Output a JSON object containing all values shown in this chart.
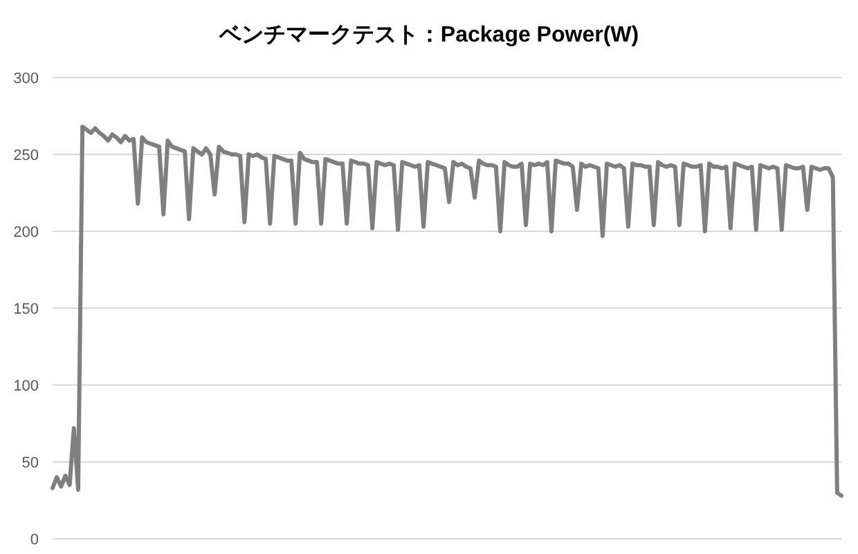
{
  "chart_data": {
    "type": "line",
    "title": "ベンチマークテスト：Package Power(W)",
    "categories": [
      null,
      null,
      null,
      null,
      null,
      null,
      null,
      null,
      null,
      null,
      null,
      null,
      null,
      null,
      null,
      null,
      null,
      null,
      null,
      null,
      null,
      null,
      null,
      null,
      null,
      null,
      null,
      null,
      null,
      null,
      null,
      null,
      null,
      null,
      null,
      null,
      null,
      null,
      null,
      null,
      null,
      null,
      null,
      null,
      null,
      null,
      null,
      null,
      null,
      null,
      null,
      null,
      null,
      null,
      null,
      null,
      null,
      null,
      null,
      null,
      null,
      null,
      null,
      null,
      null,
      null,
      null,
      null,
      null,
      null,
      null,
      null,
      null,
      null,
      null,
      null,
      null,
      null,
      null,
      null,
      null,
      null,
      null,
      null,
      null,
      null,
      null,
      null,
      null,
      null,
      null,
      null,
      null,
      null,
      null,
      null,
      null,
      null,
      null,
      null,
      null,
      null,
      null,
      null,
      null,
      null,
      null,
      null,
      null,
      null,
      null,
      null,
      null,
      null,
      null,
      null,
      null,
      null,
      null,
      null,
      null,
      null,
      null,
      null,
      null,
      null,
      null,
      null,
      null,
      null,
      null,
      null,
      null,
      null,
      null,
      null,
      null,
      null,
      null,
      null,
      null,
      null,
      null,
      null,
      null,
      null,
      null,
      null,
      null,
      null,
      null,
      null,
      null,
      null,
      null,
      null,
      null,
      null,
      null,
      null,
      null,
      null,
      null,
      null,
      null,
      null,
      null,
      null,
      null,
      null,
      null,
      null,
      null,
      null,
      null,
      null,
      null,
      null,
      null,
      null,
      null,
      null,
      null,
      null,
      null,
      null
    ],
    "values": [
      33,
      40,
      34,
      41,
      35,
      72,
      32,
      268,
      266,
      264,
      267,
      264,
      262,
      259,
      263,
      261,
      258,
      262,
      259,
      260,
      218,
      261,
      258,
      257,
      256,
      255,
      211,
      259,
      255,
      254,
      253,
      252,
      208,
      254,
      252,
      250,
      254,
      250,
      224,
      255,
      252,
      251,
      250,
      250,
      249,
      206,
      250,
      249,
      250,
      248,
      247,
      205,
      249,
      248,
      247,
      246,
      246,
      205,
      251,
      247,
      246,
      245,
      245,
      205,
      247,
      246,
      245,
      244,
      244,
      205,
      246,
      245,
      244,
      244,
      243,
      202,
      245,
      244,
      243,
      244,
      243,
      201,
      245,
      244,
      243,
      242,
      243,
      203,
      245,
      244,
      243,
      242,
      241,
      219,
      245,
      243,
      244,
      242,
      241,
      222,
      246,
      244,
      243,
      243,
      242,
      200,
      245,
      243,
      242,
      242,
      244,
      204,
      244,
      243,
      244,
      243,
      245,
      200,
      246,
      245,
      244,
      244,
      242,
      214,
      244,
      242,
      243,
      242,
      241,
      197,
      244,
      243,
      242,
      243,
      241,
      203,
      244,
      243,
      243,
      242,
      242,
      204,
      245,
      243,
      242,
      243,
      242,
      204,
      244,
      243,
      242,
      242,
      243,
      200,
      244,
      242,
      242,
      241,
      242,
      202,
      244,
      243,
      242,
      241,
      242,
      201,
      243,
      242,
      241,
      242,
      241,
      201,
      243,
      242,
      241,
      241,
      242,
      214,
      242,
      241,
      240,
      241,
      241,
      235,
      30,
      28
    ],
    "color": "#7f7f7f",
    "ylim": [
      0,
      300
    ],
    "yticks": [
      0,
      50,
      100,
      150,
      200,
      250,
      300
    ],
    "grid": "y",
    "marker": "none",
    "line_style": "solid"
  }
}
